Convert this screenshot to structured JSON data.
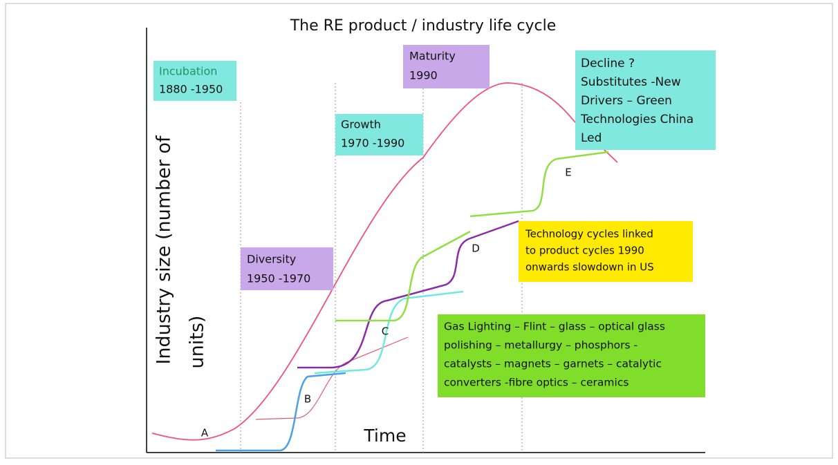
{
  "title": "The RE product / industry life cycle",
  "y_axis_label": [
    "Industry size (number of",
    "units)"
  ],
  "x_axis_label": "Time",
  "stages": [
    {
      "name": "Incubation",
      "period": "1880 -1950"
    },
    {
      "name": "Diversity",
      "period": "1950 -1970"
    },
    {
      "name": "Growth",
      "period": "1970 -1990"
    },
    {
      "name": "Maturity",
      "period": "1990"
    }
  ],
  "decline_note": [
    "Decline ?",
    "Substitutes -New",
    "Drivers – Green",
    "Technologies China",
    "Led"
  ],
  "technology_note": [
    "Technology cycles linked",
    "to product cycles 1990",
    "onwards slowdown in US"
  ],
  "applications_note": [
    "Gas Lighting – Flint – glass – optical glass",
    "polishing – metallurgy – phosphors -",
    "catalysts – magnets – garnets – catalytic",
    "converters -fibre optics – ceramics"
  ],
  "curve_labels": [
    "A",
    "B",
    "C",
    "D",
    "E"
  ]
}
